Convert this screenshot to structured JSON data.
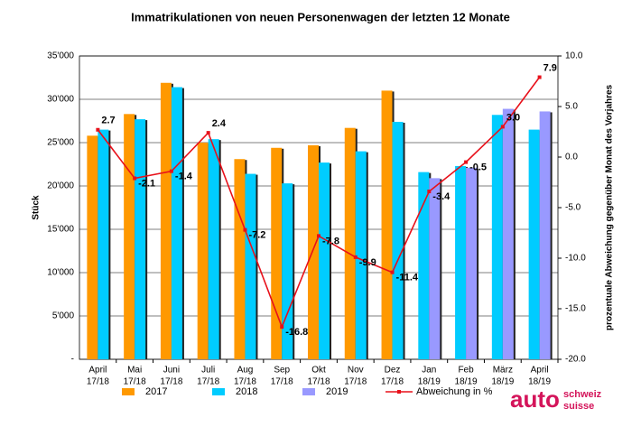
{
  "chart_data": {
    "type": "bar",
    "title": "Immatrikulationen von neuen Personenwagen der letzten 12 Monate",
    "y_label": "Stück",
    "y2_label": "prozentuale Abweichung gegenüber Monat des Vorjahres",
    "categories": [
      [
        "April",
        "17/18"
      ],
      [
        "Mai",
        "17/18"
      ],
      [
        "Juni",
        "17/18"
      ],
      [
        "Juli",
        "17/18"
      ],
      [
        "Aug",
        "17/18"
      ],
      [
        "Sep",
        "17/18"
      ],
      [
        "Okt",
        "17/18"
      ],
      [
        "Nov",
        "17/18"
      ],
      [
        "Dez",
        "17/18"
      ],
      [
        "Jan",
        "18/19"
      ],
      [
        "Feb",
        "18/19"
      ],
      [
        "März",
        "18/19"
      ],
      [
        "April",
        "18/19"
      ]
    ],
    "series": [
      {
        "name": "2017",
        "color": "#ff9900",
        "values": [
          25800,
          28300,
          31900,
          25000,
          23100,
          24400,
          24700,
          26700,
          31000,
          null,
          null,
          null,
          null
        ]
      },
      {
        "name": "2018",
        "color": "#00ccff",
        "values": [
          26500,
          27700,
          31400,
          25400,
          21400,
          20300,
          22700,
          24000,
          27400,
          21600,
          22300,
          28200,
          26500
        ]
      },
      {
        "name": "2019",
        "color": "#9999ff",
        "values": [
          null,
          null,
          null,
          null,
          null,
          null,
          null,
          null,
          null,
          20900,
          22100,
          28900,
          28600
        ]
      },
      {
        "name": "Abweichung in %",
        "color": "#e8101a",
        "type": "line",
        "axis": "y2",
        "values": [
          2.7,
          -2.1,
          -1.4,
          2.4,
          -7.2,
          -16.8,
          -7.8,
          -9.9,
          -11.4,
          -3.4,
          -0.5,
          3.0,
          7.9
        ],
        "value_labels": [
          "2.7",
          "-2.1",
          "-1.4",
          "2.4",
          "-7.2",
          "-16.8",
          "-7.8",
          "-9.9",
          "-11.4",
          "-3.4",
          "-0.5",
          "3.0",
          "7.9"
        ]
      }
    ],
    "ylim": [
      0,
      35000
    ],
    "yticks": [
      {
        "value": 0,
        "label": "-"
      },
      {
        "value": 5000,
        "label": "5'000"
      },
      {
        "value": 10000,
        "label": "10'000"
      },
      {
        "value": 15000,
        "label": "15'000"
      },
      {
        "value": 20000,
        "label": "20'000"
      },
      {
        "value": 25000,
        "label": "25'000"
      },
      {
        "value": 30000,
        "label": "30'000"
      },
      {
        "value": 35000,
        "label": "35'000"
      }
    ],
    "y2lim": [
      -20,
      10
    ],
    "y2ticks": [
      {
        "value": -20,
        "label": "-20.0"
      },
      {
        "value": -15,
        "label": "-15.0"
      },
      {
        "value": -10,
        "label": "-10.0"
      },
      {
        "value": -5,
        "label": "-5.0"
      },
      {
        "value": 0,
        "label": "0.0"
      },
      {
        "value": 5,
        "label": "5.0"
      },
      {
        "value": 10,
        "label": "10.0"
      }
    ],
    "grid": true
  },
  "logo": {
    "brand": "auto",
    "line1": "schweiz",
    "line2": "suisse"
  }
}
